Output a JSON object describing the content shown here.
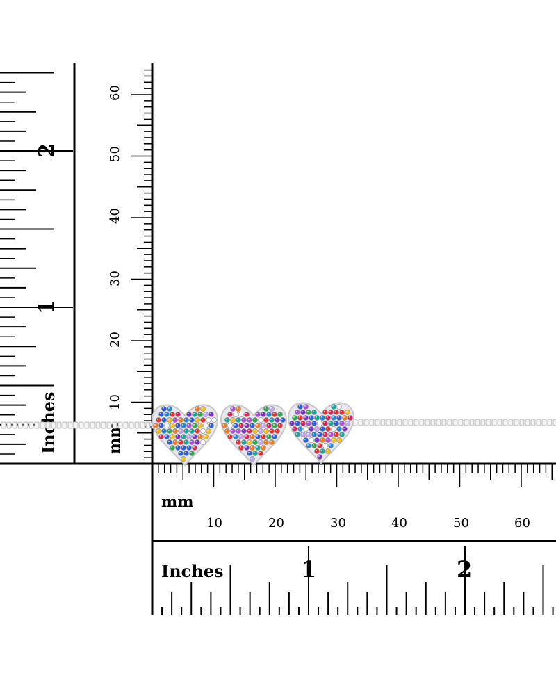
{
  "vertical_rulers": {
    "inches_label": "Inches",
    "inch_labels": [
      "1",
      "2"
    ],
    "mm_label": "mm",
    "mm_labels": [
      "10",
      "20",
      "30",
      "40",
      "50",
      "60"
    ]
  },
  "horizontal_rulers": {
    "mm_label": "mm",
    "mm_labels": [
      "10",
      "20",
      "30",
      "40",
      "50",
      "60"
    ],
    "inches_label": "Inches",
    "inch_labels": [
      "1",
      "2"
    ]
  },
  "product": {
    "hearts_count": 3,
    "stone_colors": [
      "#e62e2e",
      "#f07d1e",
      "#f2c21a",
      "#2ea84a",
      "#16a89a",
      "#2a5fd8",
      "#1f88d6",
      "#7b2fc4",
      "#b04fd8",
      "#c6a6f2",
      "#d8245c",
      "#ffffff"
    ],
    "metal_color": "#d6d6d6"
  }
}
